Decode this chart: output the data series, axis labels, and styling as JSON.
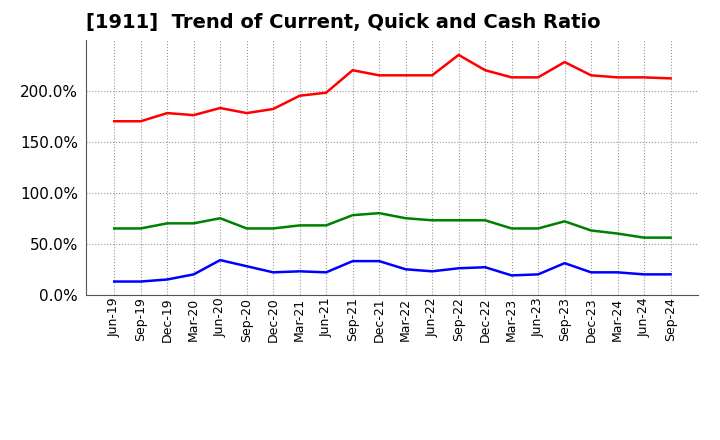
{
  "title": "[1911]  Trend of Current, Quick and Cash Ratio",
  "labels": [
    "Jun-19",
    "Sep-19",
    "Dec-19",
    "Mar-20",
    "Jun-20",
    "Sep-20",
    "Dec-20",
    "Mar-21",
    "Jun-21",
    "Sep-21",
    "Dec-21",
    "Mar-22",
    "Jun-22",
    "Sep-22",
    "Dec-22",
    "Mar-23",
    "Jun-23",
    "Sep-23",
    "Dec-23",
    "Mar-24",
    "Jun-24",
    "Sep-24"
  ],
  "current_ratio": [
    170,
    170,
    178,
    176,
    183,
    178,
    182,
    195,
    198,
    220,
    215,
    215,
    215,
    235,
    220,
    213,
    213,
    228,
    215,
    213,
    213,
    212
  ],
  "quick_ratio": [
    65,
    65,
    70,
    70,
    75,
    65,
    65,
    68,
    68,
    78,
    80,
    75,
    73,
    73,
    73,
    65,
    65,
    72,
    63,
    60,
    56,
    56
  ],
  "cash_ratio": [
    13,
    13,
    15,
    20,
    34,
    28,
    22,
    23,
    22,
    33,
    33,
    25,
    23,
    26,
    27,
    19,
    20,
    31,
    22,
    22,
    20,
    20
  ],
  "current_color": "#ff0000",
  "quick_color": "#008000",
  "cash_color": "#0000ff",
  "ylim": [
    0,
    250
  ],
  "yticks": [
    0,
    50,
    100,
    150,
    200
  ],
  "background_color": "#ffffff",
  "plot_bg_color": "#ffffff",
  "grid_color": "#999999",
  "title_fontsize": 14,
  "ytick_fontsize": 11,
  "xtick_fontsize": 9,
  "legend_fontsize": 11,
  "line_width": 1.8
}
